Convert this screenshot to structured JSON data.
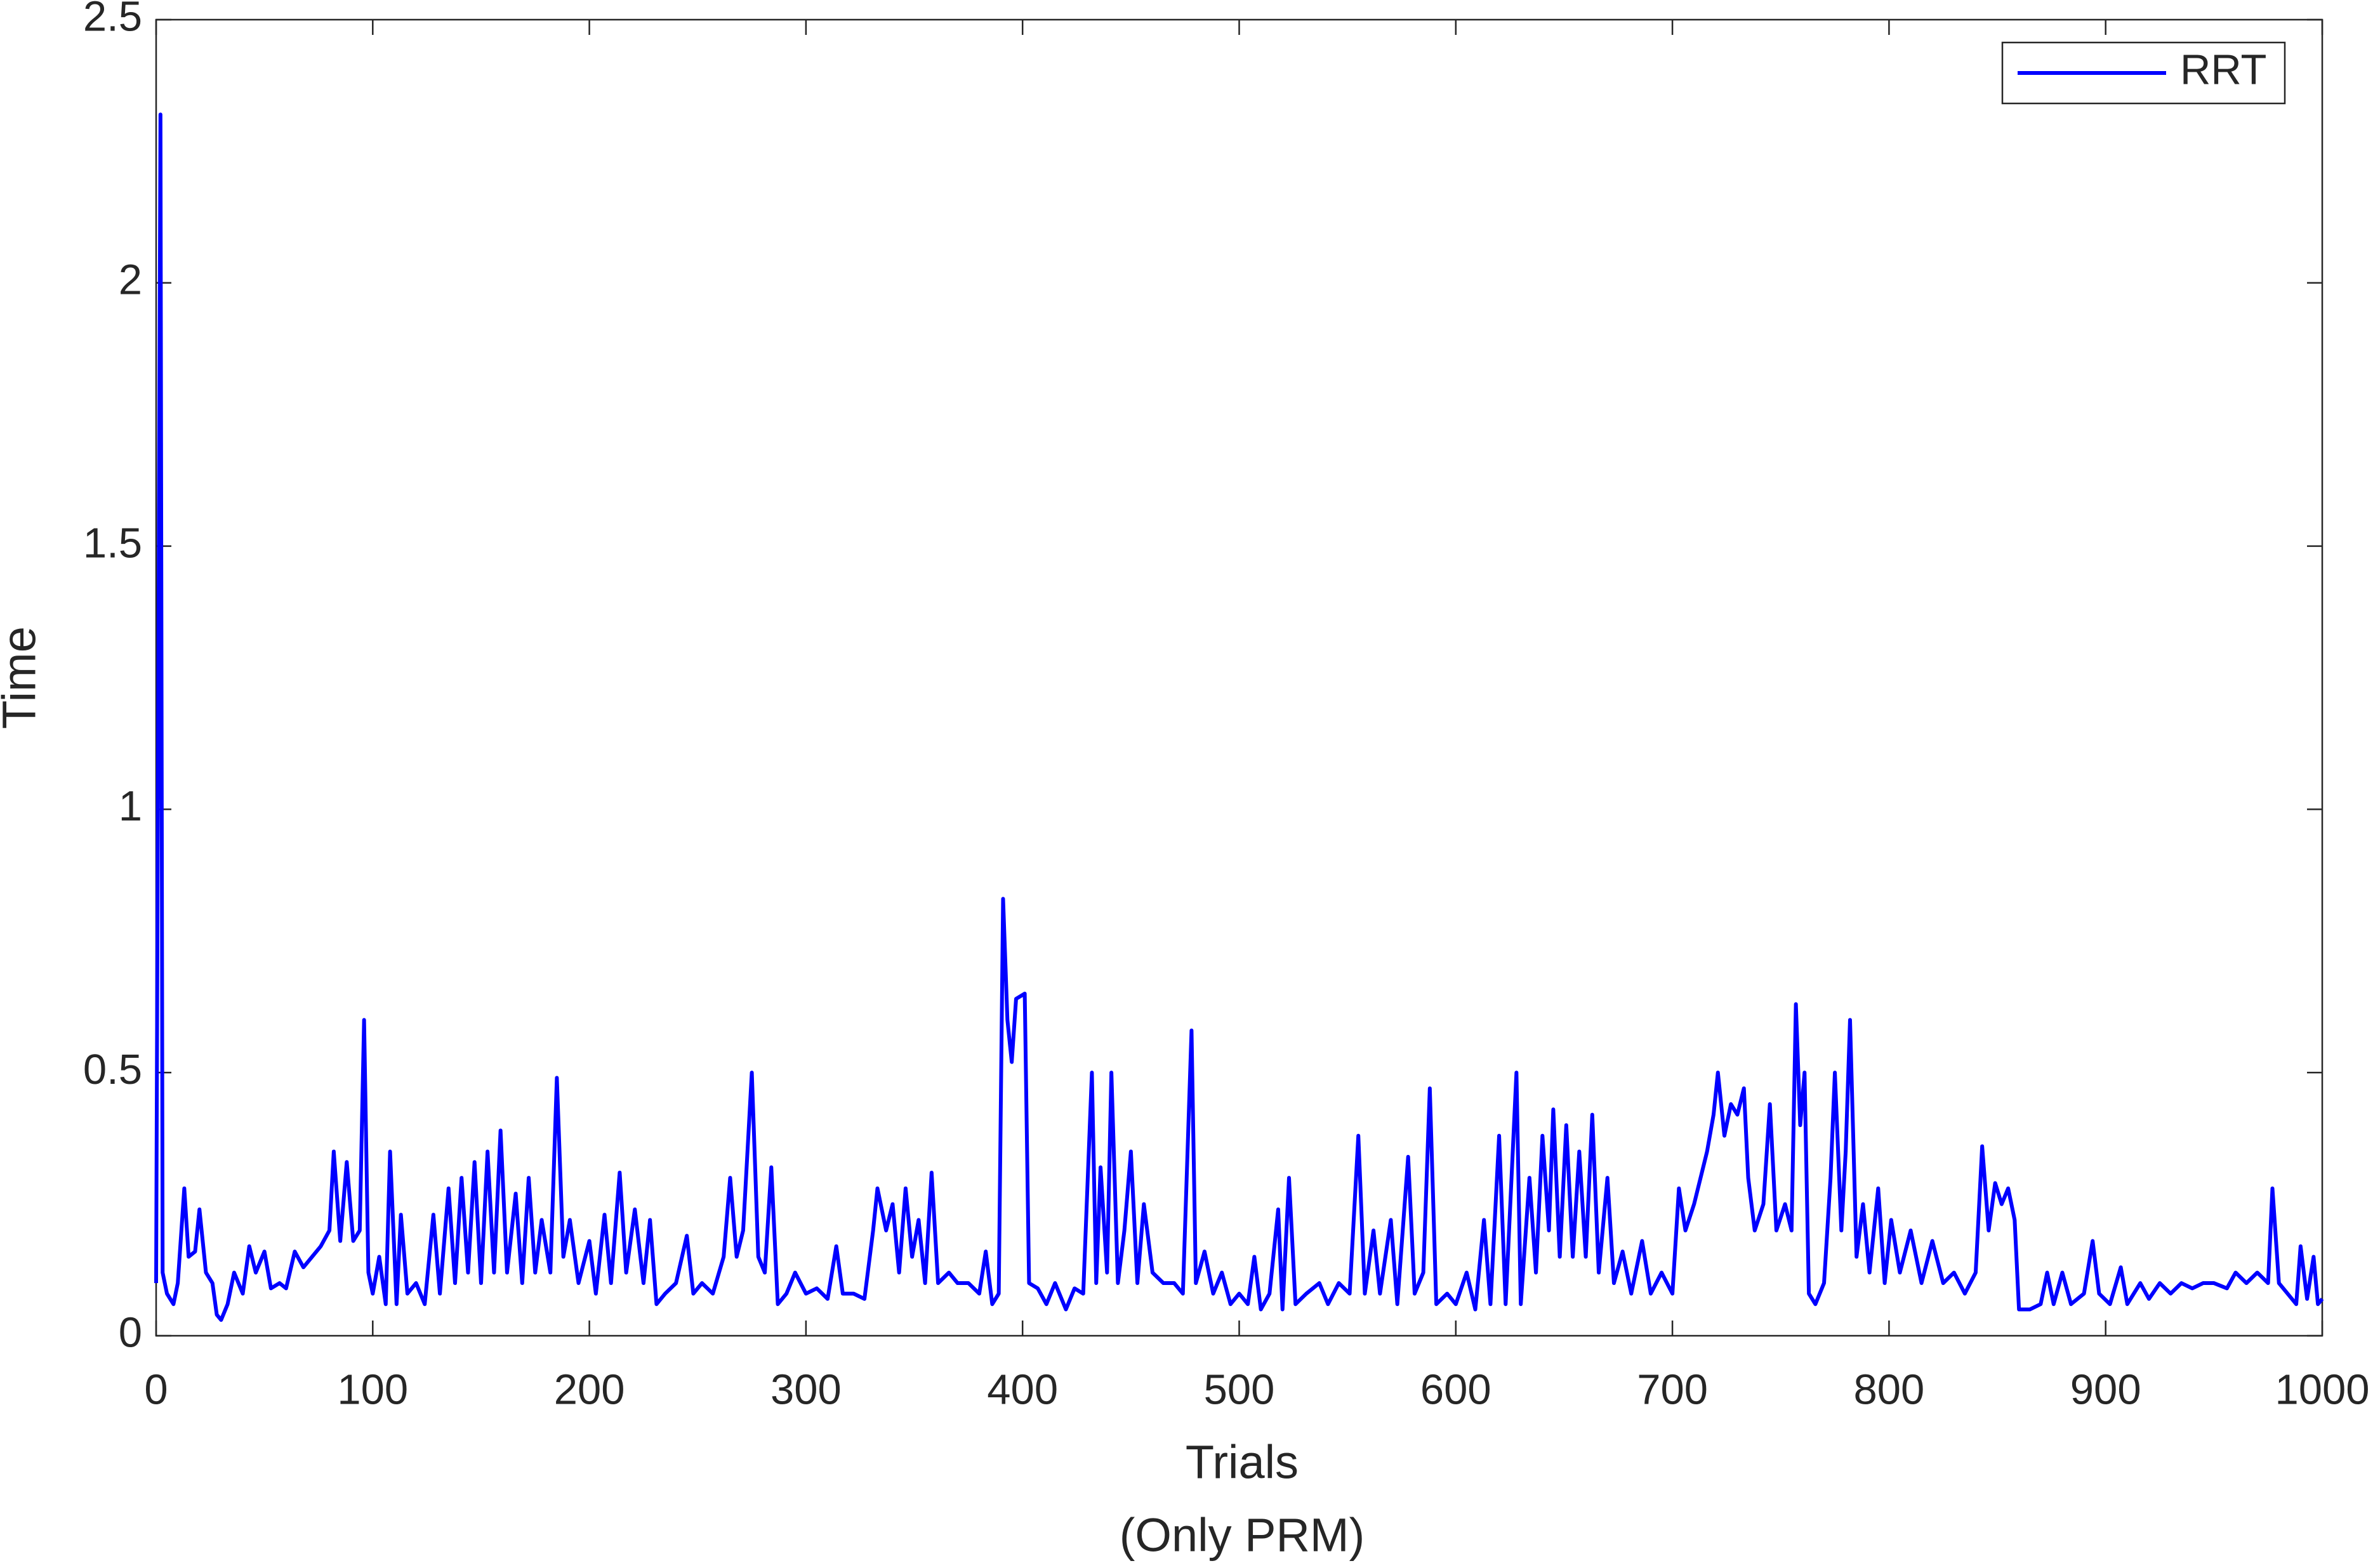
{
  "chart_data": {
    "type": "line",
    "xlabel": [
      "Trials",
      "(Only PRM)"
    ],
    "ylabel": "Time",
    "xlim": [
      0,
      1000
    ],
    "xticks": [
      0,
      100,
      200,
      300,
      400,
      500,
      600,
      700,
      800,
      900,
      1000
    ],
    "ylim": [
      0,
      2.5
    ],
    "yticks": [
      0,
      0.5,
      1,
      1.5,
      2,
      2.5
    ],
    "legend": "northeast",
    "grid": false,
    "x": [
      0,
      2,
      3,
      5,
      8,
      10,
      13,
      15,
      18,
      20,
      23,
      26,
      28,
      30,
      33,
      36,
      40,
      43,
      46,
      50,
      53,
      57,
      60,
      64,
      68,
      72,
      76,
      80,
      82,
      85,
      88,
      91,
      94,
      96,
      98,
      100,
      103,
      106,
      108,
      111,
      113,
      116,
      120,
      124,
      128,
      131,
      135,
      138,
      141,
      144,
      147,
      150,
      153,
      156,
      159,
      162,
      166,
      169,
      172,
      175,
      178,
      182,
      185,
      188,
      191,
      195,
      200,
      203,
      207,
      210,
      214,
      217,
      221,
      225,
      228,
      231,
      235,
      240,
      245,
      248,
      252,
      257,
      262,
      265,
      268,
      271,
      275,
      278,
      281,
      284,
      287,
      291,
      295,
      300,
      305,
      310,
      314,
      317,
      322,
      327,
      331,
      333,
      337,
      340,
      343,
      346,
      349,
      352,
      355,
      358,
      361,
      366,
      370,
      375,
      380,
      383,
      386,
      389,
      391,
      393,
      395,
      397,
      401,
      403,
      407,
      411,
      415,
      420,
      424,
      428,
      432,
      434,
      436,
      439,
      441,
      444,
      447,
      450,
      453,
      456,
      460,
      465,
      470,
      474,
      478,
      480,
      484,
      488,
      492,
      496,
      500,
      504,
      507,
      510,
      514,
      518,
      520,
      523,
      526,
      531,
      537,
      541,
      546,
      551,
      555,
      558,
      562,
      565,
      570,
      573,
      578,
      581,
      585,
      588,
      591,
      596,
      600,
      605,
      609,
      613,
      616,
      620,
      623,
      628,
      630,
      634,
      637,
      640,
      643,
      645,
      648,
      651,
      654,
      657,
      660,
      663,
      666,
      670,
      673,
      677,
      681,
      686,
      690,
      695,
      700,
      703,
      706,
      710,
      713,
      716,
      719,
      721,
      724,
      727,
      730,
      733,
      735,
      738,
      742,
      745,
      748,
      752,
      755,
      757,
      759,
      761,
      763,
      766,
      770,
      773,
      775,
      778,
      780,
      782,
      785,
      788,
      791,
      795,
      798,
      801,
      805,
      810,
      815,
      820,
      825,
      830,
      835,
      840,
      843,
      846,
      849,
      852,
      855,
      858,
      860,
      865,
      870,
      873,
      876,
      880,
      884,
      890,
      894,
      897,
      902,
      907,
      910,
      916,
      920,
      925,
      930,
      935,
      940,
      945,
      950,
      956,
      960,
      965,
      970,
      975,
      977,
      980,
      984,
      988,
      990,
      993,
      996,
      998,
      1000
    ],
    "series": [
      {
        "name": "RRT",
        "color": "#0000ff",
        "values": [
          0.1,
          2.32,
          0.12,
          0.08,
          0.06,
          0.1,
          0.28,
          0.15,
          0.16,
          0.24,
          0.12,
          0.1,
          0.04,
          0.03,
          0.06,
          0.12,
          0.08,
          0.17,
          0.12,
          0.16,
          0.09,
          0.1,
          0.09,
          0.16,
          0.13,
          0.15,
          0.17,
          0.2,
          0.35,
          0.18,
          0.33,
          0.18,
          0.2,
          0.6,
          0.12,
          0.08,
          0.15,
          0.06,
          0.35,
          0.06,
          0.23,
          0.08,
          0.1,
          0.06,
          0.23,
          0.08,
          0.28,
          0.1,
          0.3,
          0.12,
          0.33,
          0.1,
          0.35,
          0.12,
          0.39,
          0.12,
          0.27,
          0.1,
          0.3,
          0.12,
          0.22,
          0.12,
          0.49,
          0.15,
          0.22,
          0.1,
          0.18,
          0.08,
          0.23,
          0.1,
          0.31,
          0.12,
          0.24,
          0.1,
          0.22,
          0.06,
          0.08,
          0.1,
          0.19,
          0.08,
          0.1,
          0.08,
          0.15,
          0.3,
          0.15,
          0.2,
          0.5,
          0.15,
          0.12,
          0.32,
          0.06,
          0.08,
          0.12,
          0.08,
          0.09,
          0.07,
          0.17,
          0.08,
          0.08,
          0.07,
          0.2,
          0.28,
          0.2,
          0.25,
          0.12,
          0.28,
          0.15,
          0.22,
          0.1,
          0.31,
          0.1,
          0.12,
          0.1,
          0.1,
          0.08,
          0.16,
          0.06,
          0.08,
          0.83,
          0.6,
          0.52,
          0.64,
          0.65,
          0.1,
          0.09,
          0.06,
          0.1,
          0.05,
          0.09,
          0.08,
          0.5,
          0.1,
          0.32,
          0.12,
          0.5,
          0.1,
          0.2,
          0.35,
          0.1,
          0.25,
          0.12,
          0.1,
          0.1,
          0.08,
          0.58,
          0.1,
          0.16,
          0.08,
          0.12,
          0.06,
          0.08,
          0.06,
          0.15,
          0.05,
          0.08,
          0.24,
          0.05,
          0.3,
          0.06,
          0.08,
          0.1,
          0.06,
          0.1,
          0.08,
          0.38,
          0.08,
          0.2,
          0.08,
          0.22,
          0.06,
          0.34,
          0.08,
          0.12,
          0.47,
          0.06,
          0.08,
          0.06,
          0.12,
          0.05,
          0.22,
          0.06,
          0.38,
          0.06,
          0.5,
          0.06,
          0.3,
          0.12,
          0.38,
          0.2,
          0.43,
          0.15,
          0.4,
          0.15,
          0.35,
          0.15,
          0.42,
          0.12,
          0.3,
          0.1,
          0.16,
          0.08,
          0.18,
          0.08,
          0.12,
          0.08,
          0.28,
          0.2,
          0.25,
          0.3,
          0.35,
          0.42,
          0.5,
          0.38,
          0.44,
          0.42,
          0.47,
          0.3,
          0.2,
          0.25,
          0.44,
          0.2,
          0.25,
          0.2,
          0.63,
          0.4,
          0.5,
          0.08,
          0.06,
          0.1,
          0.3,
          0.5,
          0.2,
          0.35,
          0.6,
          0.15,
          0.25,
          0.12,
          0.28,
          0.1,
          0.22,
          0.12,
          0.2,
          0.1,
          0.18,
          0.1,
          0.12,
          0.08,
          0.12,
          0.36,
          0.2,
          0.29,
          0.25,
          0.28,
          0.22,
          0.05,
          0.05,
          0.06,
          0.12,
          0.06,
          0.12,
          0.06,
          0.08,
          0.18,
          0.08,
          0.06,
          0.13,
          0.06,
          0.1,
          0.07,
          0.1,
          0.08,
          0.1,
          0.09,
          0.1,
          0.1,
          0.09,
          0.12,
          0.1,
          0.12,
          0.1,
          0.28,
          0.1,
          0.08,
          0.06,
          0.17,
          0.07,
          0.15,
          0.06,
          0.07
        ]
      }
    ]
  }
}
